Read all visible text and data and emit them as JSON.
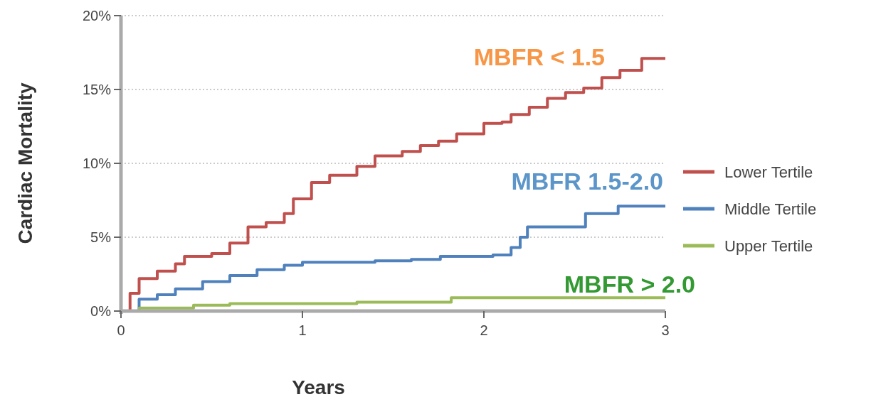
{
  "chart_data": {
    "type": "step",
    "xlabel": "Years",
    "ylabel": "Cardiac Mortality",
    "xlim": [
      0,
      3
    ],
    "xticks": [
      0,
      1,
      2,
      3
    ],
    "ylim": [
      0,
      20
    ],
    "yticks": [
      {
        "value": 0,
        "label": "0%"
      },
      {
        "value": 5,
        "label": "5%"
      },
      {
        "value": 10,
        "label": "10%"
      },
      {
        "value": 15,
        "label": "15%"
      },
      {
        "value": 20,
        "label": "20%"
      }
    ],
    "grid": "y",
    "legend": "right",
    "series": [
      {
        "name": "Lower Tertile",
        "color": "#c0504d",
        "x": [
          0,
          0.05,
          0.1,
          0.2,
          0.3,
          0.35,
          0.5,
          0.6,
          0.7,
          0.8,
          0.9,
          0.95,
          1.05,
          1.15,
          1.3,
          1.4,
          1.55,
          1.65,
          1.75,
          1.85,
          2.0,
          2.1,
          2.15,
          2.25,
          2.35,
          2.45,
          2.55,
          2.65,
          2.75,
          2.87,
          3.0
        ],
        "values": [
          0,
          1.2,
          2.2,
          2.7,
          3.2,
          3.7,
          3.9,
          4.6,
          5.7,
          6.0,
          6.6,
          7.6,
          8.7,
          9.2,
          9.8,
          10.5,
          10.8,
          11.2,
          11.5,
          12.0,
          12.7,
          12.8,
          13.3,
          13.8,
          14.4,
          14.8,
          15.1,
          15.8,
          16.3,
          17.1,
          17.1
        ]
      },
      {
        "name": "Middle Tertile",
        "color": "#4f81bd",
        "x": [
          0,
          0.1,
          0.2,
          0.3,
          0.45,
          0.6,
          0.75,
          0.9,
          1.0,
          1.25,
          1.4,
          1.6,
          1.76,
          2.05,
          2.15,
          2.2,
          2.24,
          2.56,
          2.74,
          3.0
        ],
        "values": [
          0,
          0.8,
          1.1,
          1.5,
          2.0,
          2.4,
          2.8,
          3.1,
          3.3,
          3.3,
          3.4,
          3.5,
          3.7,
          3.8,
          4.3,
          5.0,
          5.7,
          6.6,
          7.1,
          7.1
        ]
      },
      {
        "name": "Upper Tertile",
        "color": "#9bbb59",
        "x": [
          0,
          0.1,
          0.4,
          0.6,
          1.3,
          1.82,
          3.0
        ],
        "values": [
          0,
          0.2,
          0.4,
          0.5,
          0.6,
          0.9,
          0.9
        ]
      }
    ],
    "annotations": [
      "MBFR < 1.5",
      "MBFR 1.5-2.0",
      "MBFR > 2.0"
    ]
  }
}
